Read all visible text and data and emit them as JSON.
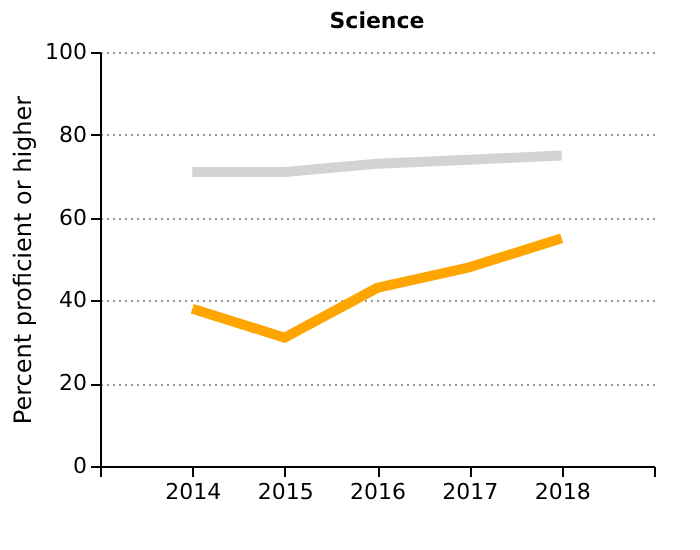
{
  "chart_data": {
    "type": "line",
    "title": "Science",
    "ylabel": "Percent proficient or higher",
    "x": [
      2014,
      2015,
      2016,
      2017,
      2018
    ],
    "series": [
      {
        "color": "#d3d3d3",
        "values": [
          71,
          71,
          73,
          74,
          75
        ]
      },
      {
        "color": "#ffa500",
        "values": [
          38,
          31,
          43,
          48,
          55
        ]
      }
    ],
    "xlim": [
      2013,
      2019
    ],
    "xticks": [
      {
        "value": 2013,
        "label": null
      },
      2014,
      2015,
      2016,
      2017,
      2018,
      {
        "value": 2019,
        "label": null
      }
    ],
    "ylim": [
      0,
      100
    ],
    "yticks": [
      0,
      20,
      40,
      60,
      80,
      100
    ],
    "grid": "y",
    "legend": false,
    "marker": "none",
    "line_style": "solid"
  }
}
